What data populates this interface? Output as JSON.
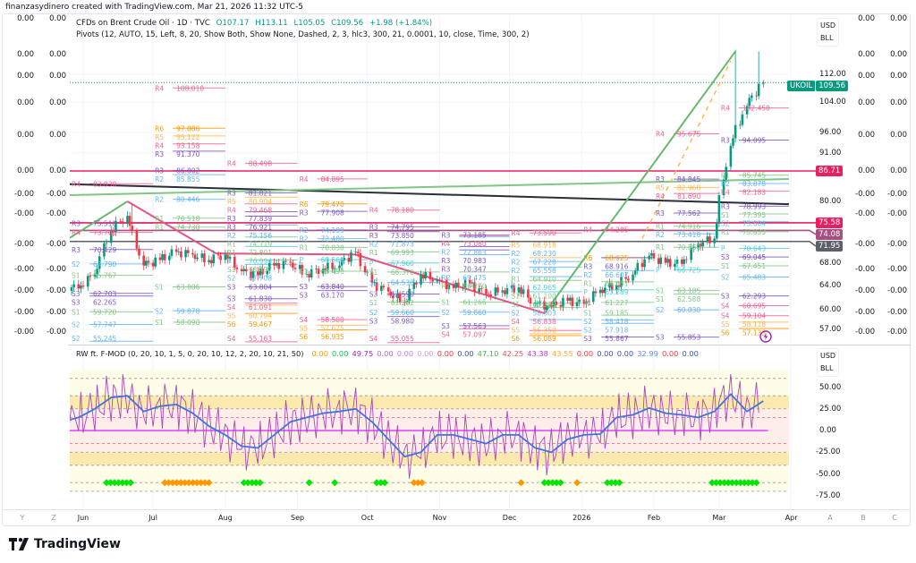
{
  "header": {
    "credit": "finanzasydinero created with TradingView.com, Mar 21, 2026 11:32 UTC-5",
    "symbol_title": "CFDs on Brent Crude Oil · 1D · TVC",
    "open": "O107.17",
    "high": "H113.11",
    "low": "L105.05",
    "close": "C109.56",
    "change": "+1.98 (+1.84%)",
    "pivots_legend": "Pivots (12, AUTO, 15, Left, 8, 20, Show Both, Show None, Dashed, 2, 3, hlc3, 300, 21, 0.0001, 10, close, Time, 300, 2)"
  },
  "indicator_legend": {
    "title": "RW ft. F-MOD (0, 20, 10, 1, 5, 0, 20, 10, 12, 2, 20, 10, 21, 50)",
    "values": [
      {
        "v": "0.00",
        "color": "#ff9800"
      },
      {
        "v": "0.00",
        "color": "#00c853"
      },
      {
        "v": "49.75",
        "color": "#9c27b0"
      },
      {
        "v": "0.00",
        "color": "#ba68c8"
      },
      {
        "v": "0.00",
        "color": "#c77ee0"
      },
      {
        "v": "0.00",
        "color": "#d39be8"
      },
      {
        "v": "0.00",
        "color": "#f23645"
      },
      {
        "v": "0.00",
        "color": "#3f51b5"
      },
      {
        "v": "47.10",
        "color": "#4caf50"
      },
      {
        "v": "42.25",
        "color": "#ef5350"
      },
      {
        "v": "43.38",
        "color": "#ab47bc"
      },
      {
        "v": "43.55",
        "color": "#ffa726"
      },
      {
        "v": "0.00",
        "color": "#f23645"
      },
      {
        "v": "0.00",
        "color": "#3f51b5"
      },
      {
        "v": "0.00",
        "color": "#3f51b5"
      },
      {
        "v": "32.99",
        "color": "#5b8cf0"
      },
      {
        "v": "0.00",
        "color": "#f23645"
      },
      {
        "v": "0.00",
        "color": "#3f51b5"
      }
    ]
  },
  "left_scale": {
    "values": [
      "0.00",
      "0.00",
      "0.00",
      "0.00",
      "0.00",
      "0.00",
      "-0.00",
      "-0.00",
      "-0.00",
      "-0.00",
      "-0.00",
      "-0.00",
      "-0.00"
    ]
  },
  "right_extra_scale": {
    "values": [
      "0.00",
      "0.00",
      "0.00",
      "0.00",
      "0.00",
      "0.00",
      "-0.00",
      "-0.00",
      "-0.00",
      "-0.00",
      "-0.00",
      "-0.00",
      "-0.00"
    ]
  },
  "price_axis": {
    "currency": "USD",
    "unit": "BLL",
    "ticks": [
      "112.00",
      "104.00",
      "96.00",
      "91.00",
      "80.00",
      "68.00",
      "64.00",
      "60.00",
      "57.00"
    ],
    "symbol_badge": {
      "label": "UKOIL",
      "value": "109.56",
      "color": "#089981"
    },
    "level_badges": [
      {
        "value": "86.71",
        "color": "#e91e63"
      },
      {
        "value": "75.58",
        "color": "#e91e63"
      },
      {
        "value": "74.08",
        "color": "#a5507e"
      },
      {
        "value": "71.95",
        "color": "#5d606b"
      }
    ]
  },
  "indicator_axis": {
    "currency": "USD",
    "unit": "BLL",
    "ticks": [
      "50.00",
      "25.00",
      "0.00",
      "-25.00",
      "-50.00",
      "-75.00"
    ]
  },
  "time_axis": {
    "labels": [
      "Jun",
      "Jul",
      "Aug",
      "Sep",
      "Oct",
      "Nov",
      "Dec",
      "2026",
      "Feb",
      "Mar",
      "Apr"
    ],
    "label_dates": [
      "2025-06-01",
      "2025-07-01",
      "2025-08-01",
      "2025-09-01",
      "2025-10-01",
      "2025-11-01",
      "2025-12-01",
      "2026-01-01",
      "2026-02-01",
      "2026-03-01",
      "2026-04-01"
    ],
    "left_buttons": [
      "Y",
      "Z"
    ],
    "right_buttons": [
      "A",
      "B",
      "C"
    ]
  },
  "brand": {
    "logo_text": "TradingView"
  },
  "colors": {
    "up": "#089981",
    "down": "#f23645",
    "pivot_R1": "#81c784",
    "pivot_R2": "#64b5f6",
    "pivot_R3": "#7e57c2",
    "pivot_R4": "#f06292",
    "pivot_R5": "#ffb74d",
    "pivot_R6": "#ff9800",
    "pivot_P": "#4dd0e1"
  },
  "chart_data": {
    "type": "candlestick",
    "symbol": "UKOIL",
    "scale": "log",
    "ylim": [
      55,
      120
    ],
    "weekly_closes": [
      [
        "2025-05-23",
        64.0
      ],
      [
        "2025-05-30",
        63.5
      ],
      [
        "2025-06-06",
        66.0
      ],
      [
        "2025-06-13",
        74.0
      ],
      [
        "2025-06-20",
        77.0
      ],
      [
        "2025-06-27",
        67.5
      ],
      [
        "2025-07-04",
        68.5
      ],
      [
        "2025-07-11",
        70.0
      ],
      [
        "2025-07-18",
        69.5
      ],
      [
        "2025-07-25",
        68.5
      ],
      [
        "2025-08-01",
        69.5
      ],
      [
        "2025-08-08",
        66.5
      ],
      [
        "2025-08-15",
        65.8
      ],
      [
        "2025-08-22",
        67.5
      ],
      [
        "2025-08-29",
        68.0
      ],
      [
        "2025-09-05",
        66.0
      ],
      [
        "2025-09-12",
        67.0
      ],
      [
        "2025-09-19",
        67.5
      ],
      [
        "2025-09-26",
        70.0
      ],
      [
        "2025-10-03",
        64.5
      ],
      [
        "2025-10-10",
        63.0
      ],
      [
        "2025-10-17",
        61.3
      ],
      [
        "2025-10-24",
        65.9
      ],
      [
        "2025-10-31",
        65.0
      ],
      [
        "2025-11-07",
        63.6
      ],
      [
        "2025-11-14",
        64.4
      ],
      [
        "2025-11-21",
        62.6
      ],
      [
        "2025-11-28",
        63.2
      ],
      [
        "2025-12-05",
        63.7
      ],
      [
        "2025-12-12",
        61.1
      ],
      [
        "2025-12-19",
        60.5
      ],
      [
        "2025-12-26",
        61.5
      ],
      [
        "2026-01-02",
        61.0
      ],
      [
        "2026-01-09",
        63.3
      ],
      [
        "2026-01-16",
        64.1
      ],
      [
        "2026-01-23",
        65.9
      ],
      [
        "2026-01-30",
        69.3
      ],
      [
        "2026-02-06",
        68.0
      ],
      [
        "2026-02-13",
        67.8
      ],
      [
        "2026-02-20",
        71.5
      ],
      [
        "2026-02-27",
        72.5
      ],
      [
        "2026-03-06",
        92.7
      ],
      [
        "2026-03-13",
        103.0
      ],
      [
        "2026-03-20",
        109.56
      ]
    ],
    "notable_wicks": [
      [
        "2025-06-23",
        79.5
      ],
      [
        "2026-03-09",
        119.5
      ],
      [
        "2026-03-19",
        119.0
      ]
    ],
    "horizontal_levels": [
      {
        "price": 86.71,
        "color": "#e91e63"
      },
      {
        "price": 75.58,
        "color": "#e91e63"
      },
      {
        "price": 74.08,
        "color": "#a5507e"
      },
      {
        "price": 71.95,
        "color": "#5d606b"
      }
    ],
    "last_price_line": 109.56,
    "trend_lines": [
      {
        "from": [
          "2025-05-22",
          83.8
        ],
        "to": [
          "2026-04-01",
          79.4
        ],
        "color": "#2a2e39"
      },
      {
        "from": [
          "2025-05-22",
          81.3
        ],
        "to": [
          "2026-04-01",
          84.9
        ],
        "color": "#81c784"
      }
    ],
    "zigzag": [
      [
        "2025-05-24",
        72.0
      ],
      [
        "2025-06-20",
        80.0
      ],
      [
        "2025-07-28",
        69.7
      ],
      [
        "2025-09-26",
        69.5
      ],
      [
        "2025-12-16",
        59.5
      ],
      [
        "2026-03-08",
        119.0
      ]
    ],
    "dashed_projection": {
      "from": [
        "2026-01-27",
        72.5
      ],
      "to": [
        "2026-03-06",
        116.0
      ],
      "color": "#ffb74d"
    },
    "pivots": [
      {
        "from": "2025-05-22",
        "to": "2025-07-01",
        "levels": [
          [
            "R4",
            "83.830"
          ],
          [
            "R3",
            "75.510"
          ],
          [
            "R4",
            "73.705"
          ],
          [
            "R3",
            "70.429"
          ],
          [
            "S2",
            "67.790"
          ],
          [
            "S1",
            "65.767"
          ],
          [
            "S3",
            "62.265"
          ],
          [
            "S3",
            "62.703"
          ],
          [
            "S1",
            "59.720"
          ],
          [
            "S2",
            "57.747"
          ],
          [
            "S2",
            "55.245"
          ]
        ]
      },
      {
        "from": "2025-07-01",
        "to": "2025-08-01",
        "levels": [
          [
            "R4",
            "108.010"
          ],
          [
            "R6",
            "97.086"
          ],
          [
            "R5",
            "95.122"
          ],
          [
            "R4",
            "93.158"
          ],
          [
            "R3",
            "91.370"
          ],
          [
            "R3",
            "86.802"
          ],
          [
            "R2",
            "85.855"
          ],
          [
            "R2",
            "80.446"
          ],
          [
            "R1",
            "76.518"
          ],
          [
            "R1",
            "74.730"
          ],
          [
            "S1",
            "63.806"
          ],
          [
            "S2",
            "59.878"
          ],
          [
            "S1",
            "58.090"
          ]
        ]
      },
      {
        "from": "2025-08-01",
        "to": "2025-09-01",
        "levels": [
          [
            "R4",
            "88.498"
          ],
          [
            "R3",
            "81.821"
          ],
          [
            "R5",
            "80.904"
          ],
          [
            "R4",
            "79.468"
          ],
          [
            "R3",
            "77.839"
          ],
          [
            "R3",
            "76.921"
          ],
          [
            "R2",
            "75.156"
          ],
          [
            "R1",
            "74.119"
          ],
          [
            "R1",
            "72.801"
          ],
          [
            "P",
            "70.994"
          ],
          [
            "S1",
            "68.497"
          ],
          [
            "S2",
            "67.708"
          ],
          [
            "S3",
            "63.804"
          ],
          [
            "S3",
            "61.830"
          ],
          [
            "S4",
            "61.091"
          ],
          [
            "S5",
            "60.794"
          ],
          [
            "S6",
            "59.467"
          ],
          [
            "S4",
            "55.163"
          ]
        ]
      },
      {
        "from": "2025-09-01",
        "to": "2025-10-01",
        "levels": [
          [
            "R4",
            "84.895"
          ],
          [
            "R6",
            "79.470"
          ],
          [
            "R3",
            "77.908"
          ],
          [
            "R2",
            "74.199"
          ],
          [
            "R2",
            "72.480"
          ],
          [
            "R1",
            "70.838"
          ],
          [
            "P",
            "68.560"
          ],
          [
            "S1",
            "66.498"
          ],
          [
            "S3",
            "63.840"
          ],
          [
            "S3",
            "63.170"
          ],
          [
            "S4",
            "58.500"
          ],
          [
            "S5",
            "57.625"
          ],
          [
            "S6",
            "56.935"
          ]
        ]
      },
      {
        "from": "2025-10-01",
        "to": "2025-11-01",
        "levels": [
          [
            "R4",
            "78.180"
          ],
          [
            "R3",
            "74.795"
          ],
          [
            "R3",
            "73.850"
          ],
          [
            "R2",
            "71.873"
          ],
          [
            "R1",
            "69.993"
          ],
          [
            "P",
            "67.960"
          ],
          [
            "S1",
            "66.370"
          ],
          [
            "S2",
            "64.538"
          ],
          [
            "S3",
            "62.590"
          ],
          [
            "S1",
            "61.282"
          ],
          [
            "S2",
            "59.660"
          ],
          [
            "S3",
            "58.980"
          ],
          [
            "S4",
            "55.055"
          ]
        ]
      },
      {
        "from": "2025-11-01",
        "to": "2025-12-01",
        "levels": [
          [
            "R3",
            "73.185"
          ],
          [
            "R2",
            "72.863"
          ],
          [
            "R4",
            "73.080"
          ],
          [
            "R3",
            "70.983"
          ],
          [
            "R3",
            "70.347"
          ],
          [
            "R2",
            "69.475"
          ],
          [
            "R1",
            "66.370"
          ],
          [
            "S1",
            "61.266"
          ],
          [
            "S2",
            "59.660"
          ],
          [
            "S3",
            "57.563"
          ],
          [
            "S4",
            "57.097"
          ]
        ]
      },
      {
        "from": "2025-12-01",
        "to": "2026-01-01",
        "levels": [
          [
            "R4",
            "73.590"
          ],
          [
            "R5",
            "68.918"
          ],
          [
            "R2",
            "68.230"
          ],
          [
            "R2",
            "67.228"
          ],
          [
            "R2",
            "65.558"
          ],
          [
            "R1",
            "64.910"
          ],
          [
            "P",
            "62.965"
          ],
          [
            "S1",
            "61.100"
          ],
          [
            "S1",
            "60.389"
          ],
          [
            "S2",
            "58.503"
          ],
          [
            "S4",
            "56.838"
          ],
          [
            "S5",
            "56.350"
          ],
          [
            "S6",
            "56.089"
          ]
        ]
      },
      {
        "from": "2026-01-01",
        "to": "2026-02-01",
        "levels": [
          [
            "R4",
            "74.285"
          ],
          [
            "R6",
            "68.925"
          ],
          [
            "R3",
            "68.916"
          ],
          [
            "R2",
            "66.607"
          ],
          [
            "R1",
            "64.651"
          ],
          [
            "P",
            "63.289"
          ],
          [
            "S1",
            "61.227"
          ],
          [
            "S1",
            "59.185"
          ],
          [
            "S2",
            "58.418"
          ],
          [
            "S2",
            "57.918"
          ],
          [
            "S3",
            "55.867"
          ]
        ]
      },
      {
        "from": "2026-02-01",
        "to": "2026-03-01",
        "levels": [
          [
            "R4",
            "95.675"
          ],
          [
            "R3",
            "84.845"
          ],
          [
            "R5",
            "82.968"
          ],
          [
            "R4",
            "81.690"
          ],
          [
            "R3",
            "77.562"
          ],
          [
            "R1",
            "74.916"
          ],
          [
            "R2",
            "73.418"
          ],
          [
            "R1",
            "70.860"
          ],
          [
            "P",
            "66.725"
          ],
          [
            "S1",
            "63.185"
          ],
          [
            "S1",
            "62.588"
          ],
          [
            "S2",
            "60.030"
          ],
          [
            "S3",
            "55.853"
          ]
        ]
      },
      {
        "from": "2026-03-01",
        "to": "2026-04-01",
        "levels": [
          [
            "R4",
            "102.450"
          ],
          [
            "R3",
            "94.095"
          ],
          [
            "R1",
            "85.745"
          ],
          [
            "R2",
            "83.878"
          ],
          [
            "R4",
            "82.183"
          ],
          [
            "R3",
            "78.993"
          ],
          [
            "S1",
            "77.395"
          ],
          [
            "S2",
            "75.804"
          ],
          [
            "R1",
            "73.833"
          ],
          [
            "P",
            "70.643"
          ],
          [
            "S3",
            "69.045"
          ],
          [
            "S1",
            "67.451"
          ],
          [
            "S2",
            "65.483"
          ],
          [
            "S3",
            "62.293"
          ],
          [
            "S4",
            "60.695"
          ],
          [
            "S4",
            "59.104"
          ],
          [
            "S5",
            "58.118"
          ],
          [
            "S6",
            "57.133"
          ]
        ]
      }
    ],
    "oscillator": {
      "ylim": [
        -80,
        70
      ],
      "levels_dashed": [
        60,
        40,
        25,
        15,
        -15,
        -25,
        -40,
        -60,
        -70
      ],
      "zero_line_color": "#e040fb",
      "blue_line": [
        10,
        15,
        25,
        38,
        40,
        22,
        28,
        30,
        20,
        5,
        -5,
        -18,
        -20,
        -5,
        10,
        15,
        20,
        22,
        25,
        10,
        -10,
        -30,
        -25,
        -5,
        -5,
        -10,
        -15,
        -5,
        -5,
        -20,
        -25,
        -10,
        -5,
        -4,
        15,
        18,
        26,
        20,
        18,
        15,
        22,
        42,
        22,
        34
      ],
      "markers": [
        {
          "from": "2025-06-11",
          "to": "2025-06-23",
          "color": "#00e600"
        },
        {
          "from": "2025-07-06",
          "to": "2025-07-25",
          "color": "#ff9800"
        },
        {
          "from": "2025-08-09",
          "to": "2025-08-16",
          "color": "#00e600"
        },
        {
          "from": "2025-09-06",
          "to": "2025-09-06",
          "color": "#00e600"
        },
        {
          "from": "2025-09-17",
          "to": "2025-09-17",
          "color": "#00e600"
        },
        {
          "from": "2025-10-05",
          "to": "2025-10-09",
          "color": "#00e600"
        },
        {
          "from": "2025-10-21",
          "to": "2025-10-25",
          "color": "#ff9800"
        },
        {
          "from": "2025-12-06",
          "to": "2025-12-06",
          "color": "#ff9800"
        },
        {
          "from": "2025-12-16",
          "to": "2025-12-24",
          "color": "#00e600"
        },
        {
          "from": "2025-12-30",
          "to": "2025-12-30",
          "color": "#ff9800"
        },
        {
          "from": "2026-01-12",
          "to": "2026-01-18",
          "color": "#00e600"
        },
        {
          "from": "2026-02-26",
          "to": "2026-03-18",
          "color": "#00e600"
        }
      ]
    }
  }
}
